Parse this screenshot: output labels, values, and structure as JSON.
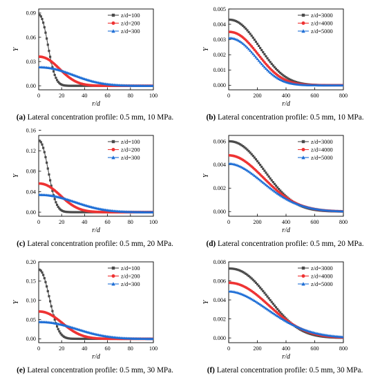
{
  "chart_data": [
    {
      "panel_id": "a",
      "type": "line",
      "caption_label": "(a)",
      "caption_text": "Lateral concentration profile: 0.5 mm, 10 MPa.",
      "xlabel": "r/d",
      "ylabel": "Y",
      "xlim": [
        0,
        100
      ],
      "ylim": [
        -0.005,
        0.095
      ],
      "xticks": [
        0,
        20,
        40,
        60,
        80,
        100
      ],
      "xtick_labels": [
        "0",
        "20",
        "40",
        "60",
        "80",
        "100"
      ],
      "yticks": [
        0,
        0.03,
        0.06,
        0.09
      ],
      "ytick_labels": [
        "0.00",
        "0.03",
        "0.06",
        "0.09"
      ],
      "grid": false,
      "legend_position": "top-right",
      "series": [
        {
          "name": "z/d=100",
          "color": "#4a4a4a",
          "marker": "square",
          "peak": 0.088,
          "width": 10.5,
          "shape": 2.2,
          "xmax": 100,
          "npts": 101
        },
        {
          "name": "z/d=200",
          "color": "#ee3333",
          "marker": "circle",
          "peak": 0.036,
          "width": 24,
          "shape": 2.2,
          "xmax": 100,
          "npts": 101
        },
        {
          "name": "z/d=300",
          "color": "#1f6fd6",
          "marker": "triangle",
          "peak": 0.023,
          "width": 40,
          "shape": 2.2,
          "xmax": 100,
          "npts": 101
        }
      ]
    },
    {
      "panel_id": "b",
      "type": "line",
      "caption_label": "(b)",
      "caption_text": "Lateral concentration profile: 0.5 mm, 10 MPa.",
      "xlabel": "r/d",
      "ylabel": "Y",
      "xlim": [
        0,
        800
      ],
      "ylim": [
        -0.0003,
        0.005
      ],
      "xticks": [
        0,
        200,
        400,
        600,
        800
      ],
      "xtick_labels": [
        "0",
        "200",
        "400",
        "600",
        "800"
      ],
      "yticks": [
        0,
        0.001,
        0.002,
        0.003,
        0.004,
        0.005
      ],
      "ytick_labels": [
        "0.000",
        "0.001",
        "0.002",
        "0.003",
        "0.004",
        "0.005"
      ],
      "grid": false,
      "legend_position": "top-right",
      "series": [
        {
          "name": "z/d=3000",
          "color": "#4a4a4a",
          "marker": "square",
          "peak": 0.0043,
          "width": 285,
          "shape": 2.2,
          "xmax": 800,
          "npts": 81
        },
        {
          "name": "z/d=4000",
          "color": "#ee3333",
          "marker": "circle",
          "peak": 0.0035,
          "width": 270,
          "shape": 2.2,
          "xmax": 800,
          "npts": 81
        },
        {
          "name": "z/d=5000",
          "color": "#1f6fd6",
          "marker": "triangle",
          "peak": 0.0031,
          "width": 255,
          "shape": 2.2,
          "xmax": 800,
          "npts": 81
        }
      ]
    },
    {
      "panel_id": "c",
      "type": "line",
      "caption_label": "(c)",
      "caption_text": "Lateral concentration profile: 0.5 mm, 20 MPa.",
      "xlabel": "r/d",
      "ylabel": "Y",
      "xlim": [
        0,
        100
      ],
      "ylim": [
        -0.008,
        0.15
      ],
      "xticks": [
        0,
        20,
        40,
        60,
        80,
        100
      ],
      "xtick_labels": [
        "0",
        "20",
        "40",
        "60",
        "80",
        "100"
      ],
      "yticks": [
        0,
        0.04,
        0.08,
        0.12,
        0.16
      ],
      "ytick_labels": [
        "0.00",
        "0.04",
        "0.08",
        "0.12",
        "0.16"
      ],
      "grid": false,
      "legend_position": "top-right",
      "series": [
        {
          "name": "z/d=100",
          "color": "#4a4a4a",
          "marker": "square",
          "peak": 0.14,
          "width": 11,
          "shape": 2.2,
          "xmax": 100,
          "npts": 101
        },
        {
          "name": "z/d=200",
          "color": "#ee3333",
          "marker": "circle",
          "peak": 0.056,
          "width": 25,
          "shape": 2.2,
          "xmax": 100,
          "npts": 101
        },
        {
          "name": "z/d=300",
          "color": "#1f6fd6",
          "marker": "triangle",
          "peak": 0.034,
          "width": 42,
          "shape": 2.2,
          "xmax": 100,
          "npts": 101
        }
      ]
    },
    {
      "panel_id": "d",
      "type": "line",
      "caption_label": "(d)",
      "caption_text": "Lateral concentration profile: 0.5 mm, 20 MPa.",
      "xlabel": "r/d",
      "ylabel": "Y",
      "xlim": [
        0,
        800
      ],
      "ylim": [
        -0.0004,
        0.0065
      ],
      "xticks": [
        0,
        200,
        400,
        600,
        800
      ],
      "xtick_labels": [
        "0",
        "200",
        "400",
        "600",
        "800"
      ],
      "yticks": [
        0,
        0.002,
        0.004,
        0.006
      ],
      "ytick_labels": [
        "0.000",
        "0.002",
        "0.004",
        "0.006"
      ],
      "grid": false,
      "legend_position": "top-right",
      "series": [
        {
          "name": "z/d=3000",
          "color": "#4a4a4a",
          "marker": "square",
          "peak": 0.006,
          "width": 330,
          "shape": 2.2,
          "xmax": 800,
          "npts": 81
        },
        {
          "name": "z/d=4000",
          "color": "#ee3333",
          "marker": "circle",
          "peak": 0.0048,
          "width": 340,
          "shape": 2.0,
          "xmax": 800,
          "npts": 81
        },
        {
          "name": "z/d=5000",
          "color": "#1f6fd6",
          "marker": "triangle",
          "peak": 0.0041,
          "width": 345,
          "shape": 1.9,
          "xmax": 800,
          "npts": 81
        }
      ]
    },
    {
      "panel_id": "e",
      "type": "line",
      "caption_label": "(e)",
      "caption_text": "Lateral concentration profile: 0.5 mm, 30 MPa.",
      "xlabel": "r/d",
      "ylabel": "Y",
      "xlim": [
        0,
        100
      ],
      "ylim": [
        -0.01,
        0.2
      ],
      "xticks": [
        0,
        20,
        40,
        60,
        80,
        100
      ],
      "xtick_labels": [
        "0",
        "20",
        "40",
        "60",
        "80",
        "100"
      ],
      "yticks": [
        0,
        0.05,
        0.1,
        0.15,
        0.2
      ],
      "ytick_labels": [
        "0.00",
        "0.05",
        "0.10",
        "0.15",
        "0.20"
      ],
      "grid": false,
      "legend_position": "top-right",
      "series": [
        {
          "name": "z/d=100",
          "color": "#4a4a4a",
          "marker": "square",
          "peak": 0.18,
          "width": 12.5,
          "shape": 2.2,
          "xmax": 100,
          "npts": 101
        },
        {
          "name": "z/d=200",
          "color": "#ee3333",
          "marker": "circle",
          "peak": 0.071,
          "width": 27,
          "shape": 2.2,
          "xmax": 100,
          "npts": 101
        },
        {
          "name": "z/d=300",
          "color": "#1f6fd6",
          "marker": "triangle",
          "peak": 0.044,
          "width": 44,
          "shape": 2.2,
          "xmax": 100,
          "npts": 101
        }
      ]
    },
    {
      "panel_id": "f",
      "type": "line",
      "caption_label": "(f)",
      "caption_text": "Lateral concentration profile: 0.5 mm, 30 MPa.",
      "xlabel": "r/d",
      "ylabel": "Y",
      "xlim": [
        0,
        800
      ],
      "ylim": [
        -0.0005,
        0.008
      ],
      "xticks": [
        0,
        200,
        400,
        600,
        800
      ],
      "xtick_labels": [
        "0",
        "200",
        "400",
        "600",
        "800"
      ],
      "yticks": [
        0,
        0.002,
        0.004,
        0.006,
        0.008
      ],
      "ytick_labels": [
        "0.000",
        "0.002",
        "0.004",
        "0.006",
        "0.008"
      ],
      "grid": false,
      "legend_position": "top-right",
      "series": [
        {
          "name": "z/d=3000",
          "color": "#4a4a4a",
          "marker": "square",
          "peak": 0.0073,
          "width": 360,
          "shape": 2.3,
          "xmax": 800,
          "npts": 81
        },
        {
          "name": "z/d=4000",
          "color": "#ee3333",
          "marker": "circle",
          "peak": 0.0058,
          "width": 380,
          "shape": 2.1,
          "xmax": 800,
          "npts": 81
        },
        {
          "name": "z/d=5000",
          "color": "#1f6fd6",
          "marker": "triangle",
          "peak": 0.0049,
          "width": 395,
          "shape": 1.9,
          "xmax": 800,
          "npts": 81
        }
      ]
    }
  ]
}
